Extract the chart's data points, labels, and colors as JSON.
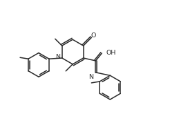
{
  "bg": "#ffffff",
  "lc": "#2a2a2a",
  "lw": 1.1,
  "fs": 6.8,
  "figsize": [
    2.46,
    1.65
  ],
  "dpi": 100,
  "xlim": [
    0.0,
    2.46
  ],
  "ylim": [
    0.0,
    1.65
  ]
}
